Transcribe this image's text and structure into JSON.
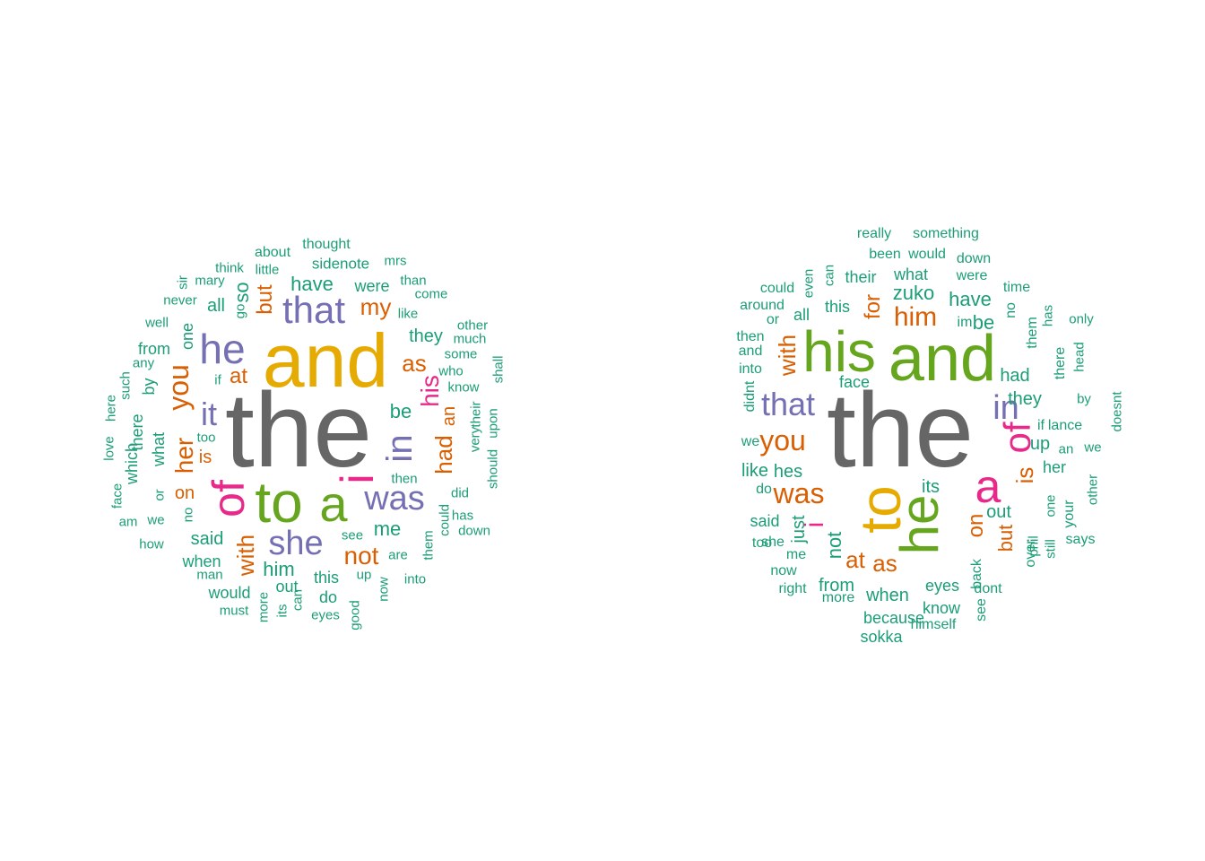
{
  "palette": {
    "size1": "#1b9e77",
    "size2": "#d95f02",
    "size3": "#7570b3",
    "size4": "#e7298a",
    "size5": "#66a61e",
    "size6": "#e6ab02",
    "size7": "#666666"
  },
  "clouds": [
    {
      "words": [
        {
          "t": "the",
          "s": 7
        },
        {
          "t": "and",
          "s": 6
        },
        {
          "t": "to",
          "s": 5
        },
        {
          "t": "a",
          "s": 5
        },
        {
          "t": "of",
          "s": 4
        },
        {
          "t": "i",
          "s": 4
        },
        {
          "t": "he",
          "s": 3
        },
        {
          "t": "that",
          "s": 3
        },
        {
          "t": "she",
          "s": 3
        },
        {
          "t": "was",
          "s": 3
        },
        {
          "t": "in",
          "s": 3
        },
        {
          "t": "it",
          "s": 3
        },
        {
          "t": "his",
          "s": 4
        },
        {
          "t": "you",
          "s": 2
        },
        {
          "t": "her",
          "s": 2
        },
        {
          "t": "with",
          "s": 2
        },
        {
          "t": "had",
          "s": 2
        },
        {
          "t": "not",
          "s": 2
        },
        {
          "t": "my",
          "s": 2
        },
        {
          "t": "as",
          "s": 2
        },
        {
          "t": "but",
          "s": 2
        },
        {
          "t": "at",
          "s": 2
        },
        {
          "t": "on",
          "s": 2
        },
        {
          "t": "is",
          "s": 2
        },
        {
          "t": "an",
          "s": 2
        },
        {
          "t": "be",
          "s": 1
        },
        {
          "t": "me",
          "s": 1
        },
        {
          "t": "him",
          "s": 1
        },
        {
          "t": "have",
          "s": 1
        },
        {
          "t": "they",
          "s": 1
        },
        {
          "t": "said",
          "s": 1
        },
        {
          "t": "so",
          "s": 1
        },
        {
          "t": "all",
          "s": 1
        },
        {
          "t": "from",
          "s": 1
        },
        {
          "t": "one",
          "s": 1
        },
        {
          "t": "by",
          "s": 1
        },
        {
          "t": "what",
          "s": 1
        },
        {
          "t": "which",
          "s": 1
        },
        {
          "t": "there",
          "s": 1
        },
        {
          "t": "when",
          "s": 1
        },
        {
          "t": "would",
          "s": 1
        },
        {
          "t": "this",
          "s": 1
        },
        {
          "t": "do",
          "s": 1
        },
        {
          "t": "out",
          "s": 1
        },
        {
          "t": "were",
          "s": 1
        },
        {
          "t": "sidenote",
          "s": 1
        },
        {
          "t": "about",
          "s": 1
        },
        {
          "t": "thought",
          "s": 1
        },
        {
          "t": "mrs",
          "s": 1
        },
        {
          "t": "than",
          "s": 1
        },
        {
          "t": "come",
          "s": 1
        },
        {
          "t": "like",
          "s": 1
        },
        {
          "t": "other",
          "s": 1
        },
        {
          "t": "much",
          "s": 1
        },
        {
          "t": "some",
          "s": 1
        },
        {
          "t": "who",
          "s": 1
        },
        {
          "t": "know",
          "s": 1
        },
        {
          "t": "shall",
          "s": 1
        },
        {
          "t": "very",
          "s": 1
        },
        {
          "t": "their",
          "s": 1
        },
        {
          "t": "should",
          "s": 1
        },
        {
          "t": "upon",
          "s": 1
        },
        {
          "t": "did",
          "s": 1
        },
        {
          "t": "has",
          "s": 1
        },
        {
          "t": "down",
          "s": 1
        },
        {
          "t": "could",
          "s": 1
        },
        {
          "t": "them",
          "s": 1
        },
        {
          "t": "into",
          "s": 1
        },
        {
          "t": "then",
          "s": 1
        },
        {
          "t": "are",
          "s": 1
        },
        {
          "t": "see",
          "s": 1
        },
        {
          "t": "up",
          "s": 1
        },
        {
          "t": "now",
          "s": 1
        },
        {
          "t": "good",
          "s": 1
        },
        {
          "t": "eyes",
          "s": 1
        },
        {
          "t": "can",
          "s": 1
        },
        {
          "t": "its",
          "s": 1
        },
        {
          "t": "more",
          "s": 1
        },
        {
          "t": "must",
          "s": 1
        },
        {
          "t": "man",
          "s": 1
        },
        {
          "t": "how",
          "s": 1
        },
        {
          "t": "we",
          "s": 1
        },
        {
          "t": "am",
          "s": 1
        },
        {
          "t": "face",
          "s": 1
        },
        {
          "t": "no",
          "s": 1
        },
        {
          "t": "or",
          "s": 1
        },
        {
          "t": "love",
          "s": 1
        },
        {
          "t": "here",
          "s": 1
        },
        {
          "t": "such",
          "s": 1
        },
        {
          "t": "any",
          "s": 1
        },
        {
          "t": "if",
          "s": 1
        },
        {
          "t": "too",
          "s": 1
        },
        {
          "t": "well",
          "s": 1
        },
        {
          "t": "never",
          "s": 1
        },
        {
          "t": "sir",
          "s": 1
        },
        {
          "t": "mary",
          "s": 1
        },
        {
          "t": "think",
          "s": 1
        },
        {
          "t": "little",
          "s": 1
        },
        {
          "t": "go",
          "s": 1
        }
      ]
    },
    {
      "words": [
        {
          "t": "the",
          "s": 7
        },
        {
          "t": "and",
          "s": 5
        },
        {
          "t": "his",
          "s": 5
        },
        {
          "t": "to",
          "s": 6
        },
        {
          "t": "he",
          "s": 5
        },
        {
          "t": "a",
          "s": 4
        },
        {
          "t": "of",
          "s": 4
        },
        {
          "t": "in",
          "s": 3
        },
        {
          "t": "that",
          "s": 3
        },
        {
          "t": "you",
          "s": 2
        },
        {
          "t": "was",
          "s": 2
        },
        {
          "t": "him",
          "s": 2
        },
        {
          "t": "with",
          "s": 2
        },
        {
          "t": "for",
          "s": 2
        },
        {
          "t": "i",
          "s": 4
        },
        {
          "t": "at",
          "s": 2
        },
        {
          "t": "as",
          "s": 2
        },
        {
          "t": "is",
          "s": 2
        },
        {
          "t": "on",
          "s": 2
        },
        {
          "t": "but",
          "s": 2
        },
        {
          "t": "not",
          "s": 1
        },
        {
          "t": "just",
          "s": 1
        },
        {
          "t": "zuko",
          "s": 1
        },
        {
          "t": "have",
          "s": 1
        },
        {
          "t": "be",
          "s": 1
        },
        {
          "t": "had",
          "s": 1
        },
        {
          "t": "they",
          "s": 1
        },
        {
          "t": "its",
          "s": 1
        },
        {
          "t": "out",
          "s": 1
        },
        {
          "t": "up",
          "s": 1
        },
        {
          "t": "her",
          "s": 1
        },
        {
          "t": "this",
          "s": 1
        },
        {
          "t": "all",
          "s": 1
        },
        {
          "t": "what",
          "s": 1
        },
        {
          "t": "their",
          "s": 1
        },
        {
          "t": "been",
          "s": 1
        },
        {
          "t": "would",
          "s": 1
        },
        {
          "t": "down",
          "s": 1
        },
        {
          "t": "were",
          "s": 1
        },
        {
          "t": "time",
          "s": 1
        },
        {
          "t": "really",
          "s": 1
        },
        {
          "t": "something",
          "s": 1
        },
        {
          "t": "could",
          "s": 1
        },
        {
          "t": "even",
          "s": 1
        },
        {
          "t": "can",
          "s": 1
        },
        {
          "t": "around",
          "s": 1
        },
        {
          "t": "or",
          "s": 1
        },
        {
          "t": "im",
          "s": 1
        },
        {
          "t": "no",
          "s": 1
        },
        {
          "t": "them",
          "s": 1
        },
        {
          "t": "has",
          "s": 1
        },
        {
          "t": "only",
          "s": 1
        },
        {
          "t": "there",
          "s": 1
        },
        {
          "t": "head",
          "s": 1
        },
        {
          "t": "by",
          "s": 1
        },
        {
          "t": "doesnt",
          "s": 1
        },
        {
          "t": "if",
          "s": 1
        },
        {
          "t": "lance",
          "s": 1
        },
        {
          "t": "an",
          "s": 1
        },
        {
          "t": "we",
          "s": 1
        },
        {
          "t": "other",
          "s": 1
        },
        {
          "t": "one",
          "s": 1
        },
        {
          "t": "still",
          "s": 1
        },
        {
          "t": "phil",
          "s": 1
        },
        {
          "t": "your",
          "s": 1
        },
        {
          "t": "says",
          "s": 1
        },
        {
          "t": "over",
          "s": 1
        },
        {
          "t": "dont",
          "s": 1
        },
        {
          "t": "back",
          "s": 1
        },
        {
          "t": "see",
          "s": 1
        },
        {
          "t": "eyes",
          "s": 1
        },
        {
          "t": "know",
          "s": 1
        },
        {
          "t": "himself",
          "s": 1
        },
        {
          "t": "sokka",
          "s": 1
        },
        {
          "t": "because",
          "s": 1
        },
        {
          "t": "when",
          "s": 1
        },
        {
          "t": "more",
          "s": 1
        },
        {
          "t": "from",
          "s": 1
        },
        {
          "t": "right",
          "s": 1
        },
        {
          "t": "now",
          "s": 1
        },
        {
          "t": "me",
          "s": 1
        },
        {
          "t": "she",
          "s": 1
        },
        {
          "t": "said",
          "s": 1
        },
        {
          "t": "too",
          "s": 1
        },
        {
          "t": "do",
          "s": 1
        },
        {
          "t": "like",
          "s": 1
        },
        {
          "t": "hes",
          "s": 1
        },
        {
          "t": "face",
          "s": 1
        },
        {
          "t": "didnt",
          "s": 1
        },
        {
          "t": "into",
          "s": 1
        },
        {
          "t": "and",
          "s": 1
        },
        {
          "t": "then",
          "s": 1
        },
        {
          "t": "we",
          "s": 1
        }
      ]
    }
  ]
}
